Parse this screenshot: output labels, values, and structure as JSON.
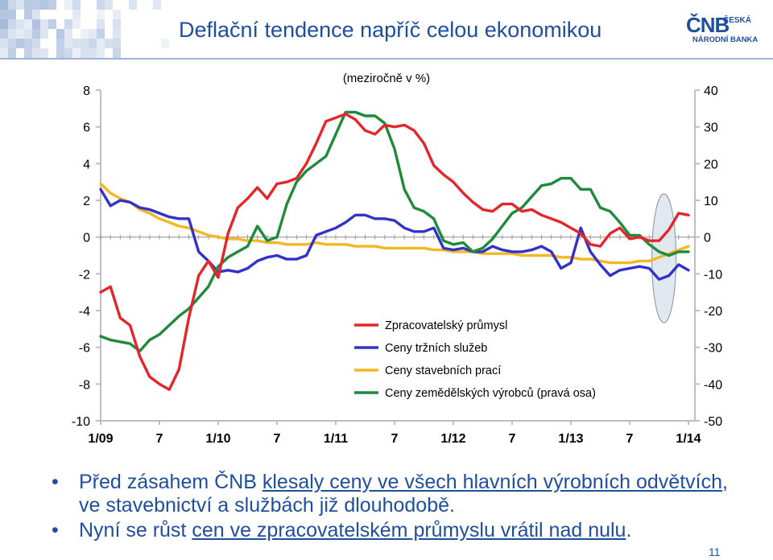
{
  "slide": {
    "title": "Deflační tendence napříč celou ekonomikou",
    "logo_mark": "ČNB",
    "logo_line1": "ČESKÁ",
    "logo_line2": "NÁRODNÍ BANKA",
    "page_number": "11"
  },
  "bullets": [
    {
      "parts": [
        {
          "text": "Před zásahem ČNB ",
          "underline": false
        },
        {
          "text": "klesaly ceny ve všech hlavních výrobních odvětvích",
          "underline": true
        },
        {
          "text": ", ve stavebnictví a službách již dlouhodobě.",
          "underline": false
        }
      ]
    },
    {
      "parts": [
        {
          "text": "Nyní se růst ",
          "underline": false
        },
        {
          "text": "cen ve zpracovatelském průmyslu vrátil nad nulu",
          "underline": true
        },
        {
          "text": ".",
          "underline": false
        }
      ]
    }
  ],
  "colors": {
    "title": "#1f4e9c",
    "text": "#1f4e9c",
    "manufacturing": "#e3262b",
    "market_services": "#3232c8",
    "construction": "#f2b824",
    "agriculture": "#1f8a3a",
    "highlight_fill": "#dfe6ee"
  },
  "chart_data": {
    "type": "line",
    "subtitle": "(meziročně v %)",
    "x_tick_labels": [
      "1/09",
      "7",
      "1/10",
      "7",
      "1/11",
      "7",
      "1/12",
      "7",
      "1/13",
      "7",
      "1/14"
    ],
    "months": 61,
    "ylim_left": [
      -10,
      8
    ],
    "yticks_left": [
      8,
      6,
      4,
      2,
      0,
      -2,
      -4,
      -6,
      -8,
      -10
    ],
    "ylim_right": [
      -50,
      40
    ],
    "yticks_right": [
      40,
      30,
      20,
      10,
      0,
      -10,
      -20,
      -30,
      -40,
      -50
    ],
    "legend_position": "lower-right",
    "highlight": "ellipse around 9/13–12/13",
    "series": [
      {
        "name": "Zpracovatelský průmysl",
        "axis": "left",
        "color_key": "manufacturing",
        "values": [
          -3.0,
          -2.7,
          -4.4,
          -4.8,
          -6.5,
          -7.6,
          -8.0,
          -8.3,
          -7.2,
          -4.4,
          -2.1,
          -1.3,
          -2.2,
          0.2,
          1.6,
          2.1,
          2.7,
          2.1,
          2.9,
          3.0,
          3.2,
          4.0,
          5.1,
          6.3,
          6.5,
          6.7,
          6.4,
          5.8,
          5.6,
          6.1,
          6.0,
          6.1,
          5.8,
          5.1,
          3.9,
          3.4,
          3.0,
          2.4,
          1.9,
          1.5,
          1.4,
          1.8,
          1.8,
          1.4,
          1.5,
          1.2,
          1.0,
          0.8,
          0.5,
          0.2,
          -0.4,
          -0.5,
          0.2,
          0.5,
          -0.1,
          0.0,
          -0.2,
          -0.2,
          0.4,
          1.3,
          1.2
        ]
      },
      {
        "name": "Ceny tržních služeb",
        "axis": "left",
        "color_key": "market_services",
        "values": [
          2.6,
          1.7,
          2.0,
          1.9,
          1.6,
          1.5,
          1.3,
          1.1,
          1.0,
          1.0,
          -0.8,
          -1.3,
          -1.9,
          -1.8,
          -1.9,
          -1.7,
          -1.3,
          -1.1,
          -1.0,
          -1.2,
          -1.2,
          -1.0,
          0.1,
          0.3,
          0.5,
          0.8,
          1.2,
          1.2,
          1.0,
          1.0,
          0.9,
          0.5,
          0.3,
          0.3,
          0.5,
          -0.6,
          -0.7,
          -0.6,
          -0.8,
          -0.8,
          -0.5,
          -0.7,
          -0.8,
          -0.8,
          -0.7,
          -0.5,
          -0.8,
          -1.7,
          -1.4,
          0.5,
          -0.8,
          -1.5,
          -2.1,
          -1.8,
          -1.7,
          -1.6,
          -1.7,
          -2.3,
          -2.1,
          -1.5,
          -1.8
        ]
      },
      {
        "name": "Ceny stavebních prací",
        "axis": "left",
        "color_key": "construction",
        "values": [
          2.9,
          2.4,
          2.1,
          1.9,
          1.5,
          1.3,
          1.0,
          0.8,
          0.6,
          0.5,
          0.3,
          0.1,
          0.0,
          -0.1,
          -0.1,
          -0.2,
          -0.2,
          -0.3,
          -0.3,
          -0.4,
          -0.4,
          -0.4,
          -0.3,
          -0.4,
          -0.4,
          -0.4,
          -0.5,
          -0.5,
          -0.5,
          -0.6,
          -0.6,
          -0.6,
          -0.6,
          -0.6,
          -0.7,
          -0.7,
          -0.8,
          -0.8,
          -0.8,
          -0.9,
          -0.9,
          -0.9,
          -0.9,
          -1.0,
          -1.0,
          -1.0,
          -1.0,
          -1.1,
          -1.1,
          -1.2,
          -1.2,
          -1.3,
          -1.4,
          -1.4,
          -1.4,
          -1.3,
          -1.3,
          -1.1,
          -0.9,
          -0.7,
          -0.5
        ]
      },
      {
        "name": "Ceny zemědělských výrobců (pravá osa)",
        "axis": "right",
        "color_key": "agriculture",
        "values": [
          -27,
          -28,
          -28.5,
          -29,
          -31,
          -28,
          -26.5,
          -24,
          -21.5,
          -19.5,
          -16.5,
          -13.5,
          -8,
          -5.5,
          -4,
          -2.5,
          3,
          -1,
          0,
          9,
          15,
          18,
          20,
          22,
          28,
          34,
          34,
          33,
          33,
          31,
          24,
          13,
          8,
          7,
          5,
          -1,
          -2,
          -1.5,
          -4,
          -3,
          -0.5,
          3,
          6.5,
          8,
          11,
          14,
          14.5,
          16,
          16,
          13,
          13,
          8,
          7,
          4,
          0.5,
          0.5,
          -2,
          -4,
          -5,
          -4,
          -4
        ]
      }
    ]
  }
}
